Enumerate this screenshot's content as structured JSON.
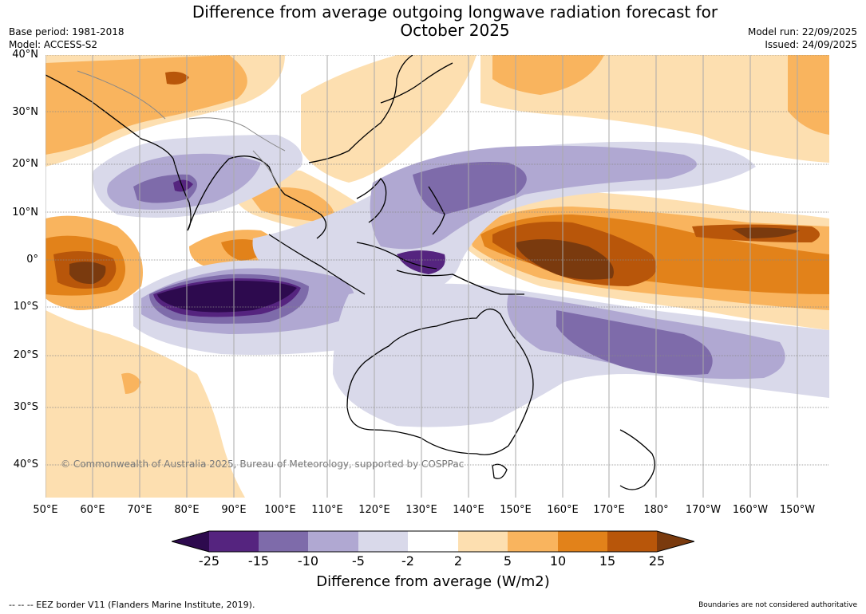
{
  "header": {
    "title_line1": "Difference from average outgoing longwave radiation forecast for",
    "title_line2": "October 2025",
    "base_period": "Base period: 1981-2018",
    "model": "Model: ACCESS-S2",
    "model_run": "Model run: 22/09/2025",
    "issued": "Issued: 24/09/2025"
  },
  "map": {
    "copyright": "© Commonwealth of Australia 2025, Bureau of Meteorology, supported by COSPPac",
    "lat_labels": [
      "40°N",
      "30°N",
      "20°N",
      "10°N",
      "0°",
      "10°S",
      "20°S",
      "30°S",
      "40°S"
    ],
    "lon_labels": [
      "50°E",
      "60°E",
      "70°E",
      "80°E",
      "90°E",
      "100°E",
      "110°E",
      "120°E",
      "130°E",
      "140°E",
      "150°E",
      "160°E",
      "170°E",
      "180°",
      "170°W",
      "160°W",
      "150°W"
    ],
    "land_color": "#000000",
    "grid_color": "#888888"
  },
  "colorbar": {
    "label": "Difference from average (W/m2)",
    "ticks": [
      "-25",
      "-15",
      "-10",
      "-5",
      "-2",
      "2",
      "5",
      "10",
      "15",
      "25"
    ],
    "colors": [
      "#2d0a4e",
      "#55247f",
      "#7e6baa",
      "#b0a8d2",
      "#d9d9ea",
      "#ffffff",
      "#fddfb0",
      "#f9b45e",
      "#e2821a",
      "#b8560a",
      "#7a3a0e"
    ]
  },
  "footer": {
    "eez_note": "--  --  -- EEZ border V11 (Flanders Marine Institute, 2019).",
    "disclaimer": "Boundaries are not considered authoritative"
  }
}
